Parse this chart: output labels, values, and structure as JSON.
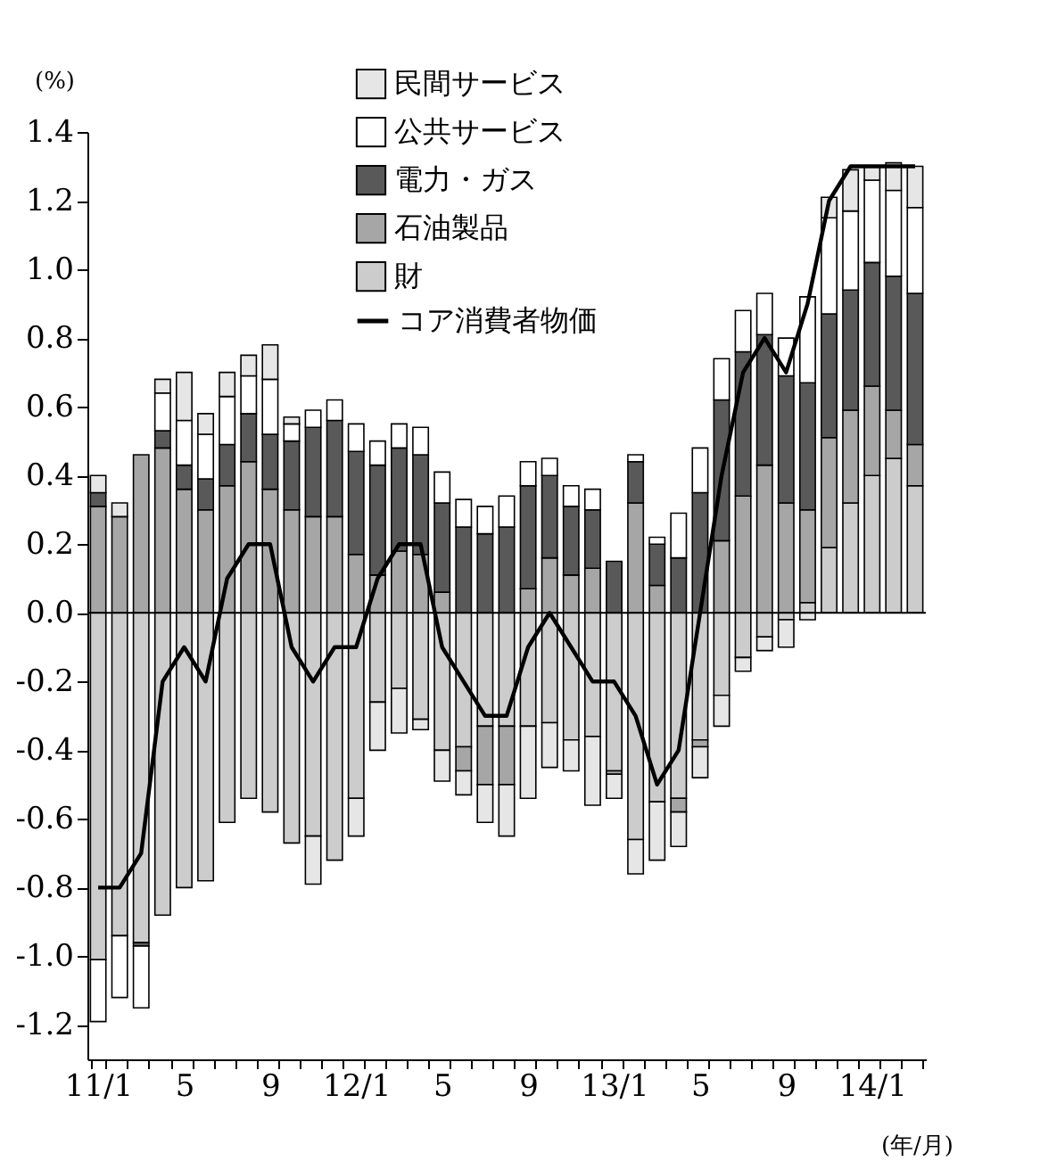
{
  "chart_data": {
    "type": "bar",
    "stacked": true,
    "ylabel": "(%)",
    "xlabel": "(年/月)",
    "legend": "top",
    "categories": [
      "11/1",
      null,
      null,
      null,
      "5",
      null,
      null,
      null,
      "9",
      null,
      null,
      null,
      "12/1",
      null,
      null,
      null,
      "5",
      null,
      null,
      null,
      "9",
      null,
      null,
      null,
      "13/1",
      null,
      null,
      null,
      "5",
      null,
      null,
      null,
      "9",
      null,
      null,
      null,
      "14/1",
      null,
      null
    ],
    "ylim": [
      -1.3,
      1.4
    ],
    "yticks": [
      {
        "value": -1.2,
        "label": "-1.2"
      },
      {
        "value": -1.0,
        "label": "-1.0"
      },
      {
        "value": -0.8,
        "label": "-0.8"
      },
      {
        "value": -0.6,
        "label": "-0.6"
      },
      {
        "value": -0.4,
        "label": "-0.4"
      },
      {
        "value": -0.2,
        "label": "-0.2"
      },
      {
        "value": 0,
        "label": "0.0"
      },
      {
        "value": 0.2,
        "label": "0.2"
      },
      {
        "value": 0.4,
        "label": "0.4"
      },
      {
        "value": 0.6,
        "label": "0.6"
      },
      {
        "value": 0.8,
        "label": "0.8"
      },
      {
        "value": 1.0,
        "label": "1.0"
      },
      {
        "value": 1.2,
        "label": "1.2"
      },
      {
        "value": 1.4,
        "label": "1.4"
      }
    ],
    "ref_lines": [
      {
        "axis": "y",
        "value": 0
      }
    ],
    "series": [
      {
        "name": "財",
        "color": "#cccccc",
        "values": [
          -1.01,
          -0.94,
          -0.96,
          -0.88,
          -0.8,
          -0.78,
          -0.61,
          -0.54,
          -0.58,
          -0.67,
          -0.65,
          -0.72,
          -0.54,
          -0.26,
          -0.22,
          -0.31,
          -0.4,
          -0.39,
          -0.33,
          -0.33,
          -0.33,
          -0.32,
          -0.37,
          -0.36,
          -0.46,
          -0.66,
          -0.55,
          -0.54,
          -0.37,
          -0.24,
          -0.13,
          -0.07,
          -0.02,
          0.03,
          0.19,
          0.32,
          0.4,
          0.45,
          0.37
        ]
      },
      {
        "name": "石油製品",
        "color": "#a6a6a6",
        "values": [
          0.31,
          0.28,
          0.46,
          0.48,
          0.36,
          0.3,
          0.37,
          0.44,
          0.36,
          0.3,
          0.28,
          0.28,
          0.17,
          0.11,
          0.18,
          0.17,
          0.06,
          -0.07,
          -0.17,
          -0.17,
          0.07,
          0.16,
          0.11,
          0.13,
          -0.01,
          0.32,
          0.08,
          -0.04,
          -0.02,
          0.21,
          0.34,
          0.43,
          0.32,
          0.27,
          0.32,
          0.27,
          0.26,
          0.14,
          0.12
        ]
      },
      {
        "name": "電力・ガス",
        "color": "#595959",
        "values": [
          0.04,
          null,
          -0.01,
          0.05,
          0.07,
          0.09,
          0.12,
          0.14,
          0.16,
          0.2,
          0.26,
          0.28,
          0.3,
          0.32,
          0.3,
          0.29,
          0.26,
          0.25,
          0.23,
          0.25,
          0.3,
          0.24,
          0.2,
          0.17,
          0.15,
          0.12,
          0.12,
          0.16,
          0.35,
          0.41,
          0.42,
          0.38,
          0.37,
          0.37,
          0.36,
          0.35,
          0.36,
          0.39,
          0.44
        ]
      },
      {
        "name": "公共サービス",
        "color": "#ffffff",
        "values": [
          -0.18,
          -0.18,
          -0.18,
          0.11,
          0.13,
          0.13,
          0.14,
          0.11,
          0.16,
          0.05,
          0.05,
          0.06,
          0.08,
          0.07,
          0.07,
          0.08,
          0.09,
          0.08,
          0.08,
          0.09,
          0.07,
          0.05,
          0.06,
          0.06,
          null,
          0.02,
          0.02,
          0.13,
          0.13,
          0.12,
          0.12,
          0.12,
          0.11,
          0.25,
          0.28,
          0.23,
          0.24,
          0.25,
          0.25
        ]
      },
      {
        "name": "民間サービス",
        "color": "#e6e6e6",
        "values": [
          0.05,
          0.04,
          null,
          0.04,
          0.14,
          0.06,
          0.07,
          0.06,
          0.1,
          0.02,
          -0.14,
          null,
          -0.11,
          -0.14,
          -0.13,
          -0.03,
          -0.09,
          -0.07,
          -0.11,
          -0.15,
          -0.21,
          -0.13,
          -0.09,
          -0.2,
          -0.07,
          -0.1,
          -0.17,
          -0.1,
          -0.09,
          -0.09,
          -0.04,
          -0.04,
          -0.08,
          -0.02,
          0.06,
          0.12,
          0.04,
          0.08,
          0.12
        ]
      },
      {
        "name": "コア消費者物価",
        "type": "line",
        "color": "#000000",
        "values": [
          -0.8,
          -0.8,
          -0.7,
          -0.2,
          -0.1,
          -0.2,
          0.1,
          0.2,
          0.2,
          -0.1,
          -0.2,
          -0.1,
          -0.1,
          0.1,
          0.2,
          0.2,
          -0.1,
          -0.2,
          -0.3,
          -0.3,
          -0.1,
          0.0,
          -0.1,
          -0.2,
          -0.2,
          -0.3,
          -0.5,
          -0.4,
          0.0,
          0.4,
          0.7,
          0.8,
          0.7,
          0.9,
          1.2,
          1.3,
          1.3,
          1.3,
          1.3
        ]
      }
    ]
  }
}
